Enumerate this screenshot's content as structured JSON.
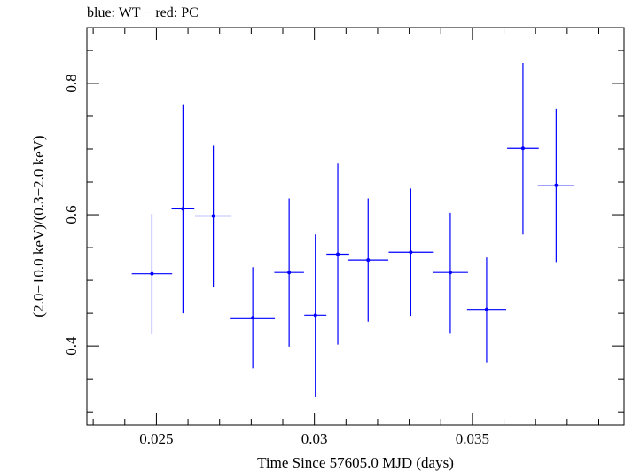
{
  "chart_data": {
    "type": "scatter",
    "title": "blue: WT − red: PC",
    "xlabel": "Time Since 57605.0 MJD (days)",
    "ylabel": "(2.0−10.0 keV)/(0.3−2.0 keV)",
    "xlim": [
      0.0228,
      0.0398
    ],
    "ylim": [
      0.28,
      0.885
    ],
    "x_ticks": [
      0.025,
      0.03,
      0.035
    ],
    "x_tick_labels": [
      "0.025",
      "0.03",
      "0.035"
    ],
    "y_ticks": [
      0.4,
      0.6,
      0.8
    ],
    "y_tick_labels": [
      "0.4",
      "0.6",
      "0.8"
    ],
    "grid": false,
    "series": [
      {
        "name": "WT",
        "color": "#0000ff",
        "points": [
          {
            "x": 0.02486,
            "xerr": 0.00064,
            "y": 0.51,
            "ylo": 0.419,
            "yhi": 0.601
          },
          {
            "x": 0.02584,
            "xerr": 0.00036,
            "y": 0.609,
            "ylo": 0.45,
            "yhi": 0.768
          },
          {
            "x": 0.0268,
            "xerr": 0.00058,
            "y": 0.598,
            "ylo": 0.49,
            "yhi": 0.706
          },
          {
            "x": 0.02805,
            "xerr": 0.0007,
            "y": 0.443,
            "ylo": 0.366,
            "yhi": 0.52
          },
          {
            "x": 0.0292,
            "xerr": 0.00047,
            "y": 0.512,
            "ylo": 0.399,
            "yhi": 0.625
          },
          {
            "x": 0.03003,
            "xerr": 0.00035,
            "y": 0.447,
            "ylo": 0.323,
            "yhi": 0.57
          },
          {
            "x": 0.03074,
            "xerr": 0.00036,
            "y": 0.54,
            "ylo": 0.402,
            "yhi": 0.678
          },
          {
            "x": 0.0317,
            "xerr": 0.00064,
            "y": 0.531,
            "ylo": 0.437,
            "yhi": 0.625
          },
          {
            "x": 0.03305,
            "xerr": 0.0007,
            "y": 0.543,
            "ylo": 0.446,
            "yhi": 0.64
          },
          {
            "x": 0.0343,
            "xerr": 0.00056,
            "y": 0.512,
            "ylo": 0.42,
            "yhi": 0.603
          },
          {
            "x": 0.03545,
            "xerr": 0.00062,
            "y": 0.456,
            "ylo": 0.375,
            "yhi": 0.535
          },
          {
            "x": 0.0366,
            "xerr": 0.0005,
            "y": 0.701,
            "ylo": 0.57,
            "yhi": 0.831
          },
          {
            "x": 0.03765,
            "xerr": 0.00058,
            "y": 0.645,
            "ylo": 0.528,
            "yhi": 0.761
          }
        ]
      }
    ]
  }
}
